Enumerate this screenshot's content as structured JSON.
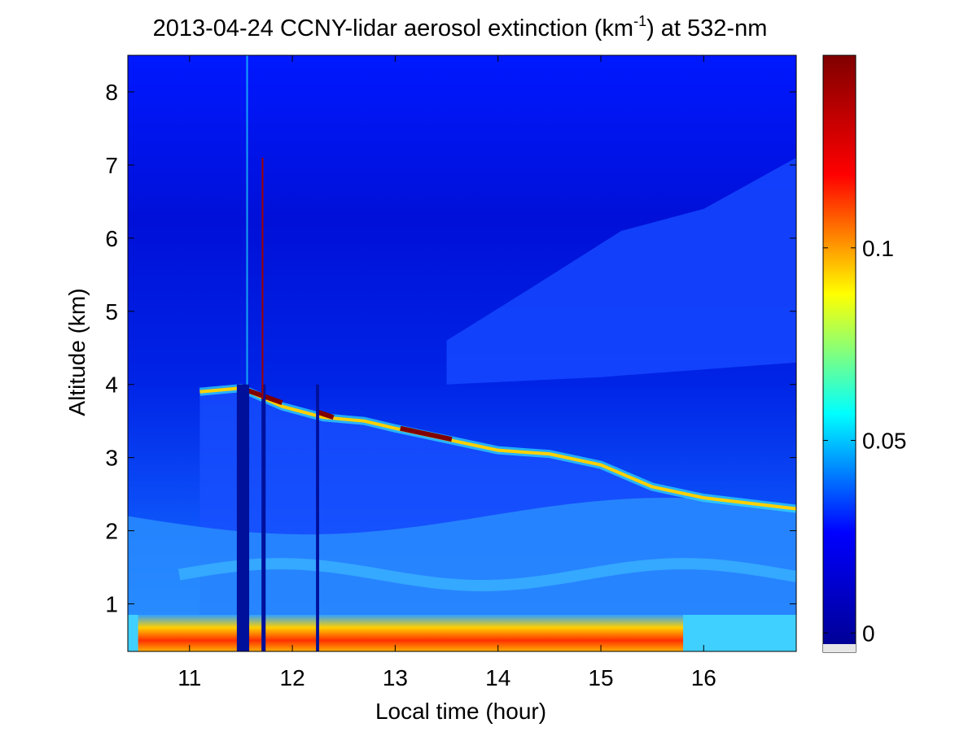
{
  "chart_data": {
    "type": "heatmap",
    "title_prefix": "2013-04-24 CCNY-lidar aerosol extinction (km",
    "title_sup": "-1",
    "title_suffix": ") at 532-nm",
    "xlabel": "Local time (hour)",
    "ylabel": "Altitude (km)",
    "xlim": [
      10.4,
      16.9
    ],
    "ylim": [
      0.35,
      8.5
    ],
    "x_ticks": [
      11,
      12,
      13,
      14,
      15,
      16
    ],
    "y_ticks": [
      1,
      2,
      3,
      4,
      5,
      6,
      7,
      8
    ],
    "colorbar": {
      "colormap": "jet",
      "range": [
        -0.005,
        0.15
      ],
      "ticks": [
        0,
        0.05,
        0.1
      ],
      "tick_labels": [
        "0",
        "0.05",
        "0.1"
      ],
      "colors": [
        "#00008f",
        "#0000ff",
        "#00ffff",
        "#ffff00",
        "#ff0000",
        "#800000"
      ]
    },
    "features": {
      "aerosol_layer_top_km": [
        [
          11.1,
          3.9
        ],
        [
          11.5,
          3.95
        ],
        [
          11.9,
          3.7
        ],
        [
          12.3,
          3.55
        ],
        [
          12.7,
          3.5
        ],
        [
          13.0,
          3.4
        ],
        [
          13.5,
          3.25
        ],
        [
          14.0,
          3.1
        ],
        [
          14.5,
          3.05
        ],
        [
          15.0,
          2.9
        ],
        [
          15.5,
          2.6
        ],
        [
          16.0,
          2.45
        ],
        [
          16.9,
          2.3
        ]
      ],
      "near_surface_high_extinction_km": [
        0.4,
        0.85
      ],
      "high_extinction_periods_hours": [
        [
          10.5,
          15.8
        ]
      ],
      "instrument_gaps_hours": [
        [
          11.46,
          11.58
        ],
        [
          11.7,
          11.74
        ],
        [
          12.23,
          12.26
        ]
      ],
      "cloud_spike": {
        "time": 11.71,
        "alt_range_km": [
          3.8,
          7.1
        ]
      }
    }
  }
}
